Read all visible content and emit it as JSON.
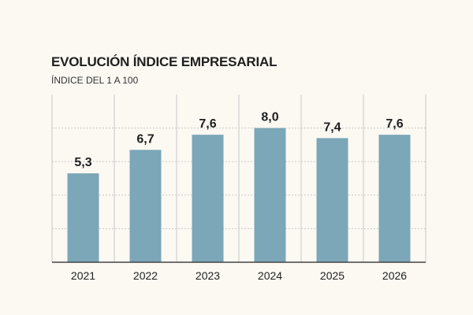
{
  "chart": {
    "title": "EVOLUCIÓN ÍNDICE EMPRESARIAL",
    "subtitle": "ÍNDICE DEL 1 A 100"
  },
  "colors": {
    "bar": "#7ba7b8",
    "gridline": "#c8c8c8",
    "axis": "#444444",
    "background": "#fcf9f3"
  },
  "chart_data": {
    "type": "bar",
    "title": "EVOLUCIÓN ÍNDICE EMPRESARIAL",
    "subtitle": "ÍNDICE DEL 1 A 100",
    "categories": [
      "2021",
      "2022",
      "2023",
      "2024",
      "2025",
      "2026"
    ],
    "values": [
      5.3,
      6.7,
      7.6,
      8.0,
      7.4,
      7.6
    ],
    "value_labels": [
      "5,3",
      "6,7",
      "7,6",
      "8,0",
      "7,4",
      "7,6"
    ],
    "xlabel": "",
    "ylabel": "",
    "ylim": [
      0,
      10
    ],
    "grid": true,
    "legend": "none"
  }
}
